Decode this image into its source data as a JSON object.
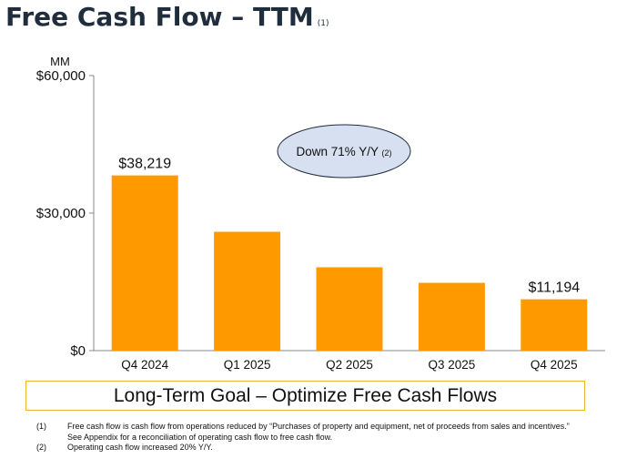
{
  "title": "Free Cash Flow – TTM",
  "title_footnote_ref": "(1)",
  "chart_data": {
    "type": "bar",
    "unit_label": "MM",
    "categories": [
      "Q4 2024",
      "Q1 2025",
      "Q2 2025",
      "Q3 2025",
      "Q4 2025"
    ],
    "values": [
      38219,
      25925,
      18184,
      14788,
      11194
    ],
    "data_labels": [
      "$38,219",
      "",
      "",
      "",
      "$11,194"
    ],
    "y_ticks": [
      {
        "value": 0,
        "label": "$0"
      },
      {
        "value": 30000,
        "label": "$30,000"
      },
      {
        "value": 60000,
        "label": "$60,000"
      }
    ],
    "ylim": [
      0,
      60000
    ],
    "grid": false,
    "bar_color": "#ff9900",
    "annotation": {
      "text": "Down 71% Y/Y",
      "ref": "(2)",
      "fill": "#d6e0f0",
      "stroke": "#1f2d3d"
    }
  },
  "goal_text": "Long-Term Goal – Optimize Free Cash Flows",
  "goal_border_color": "#f0b232",
  "footnotes": [
    {
      "num": "(1)",
      "lines": [
        "Free cash flow is cash flow from operations reduced by “Purchases of property and equipment, net of proceeds from sales and incentives.”",
        "See Appendix for a reconciliation of operating cash flow to free cash flow."
      ]
    },
    {
      "num": "(2)",
      "lines": [
        "Operating cash flow increased 20% Y/Y."
      ]
    }
  ]
}
